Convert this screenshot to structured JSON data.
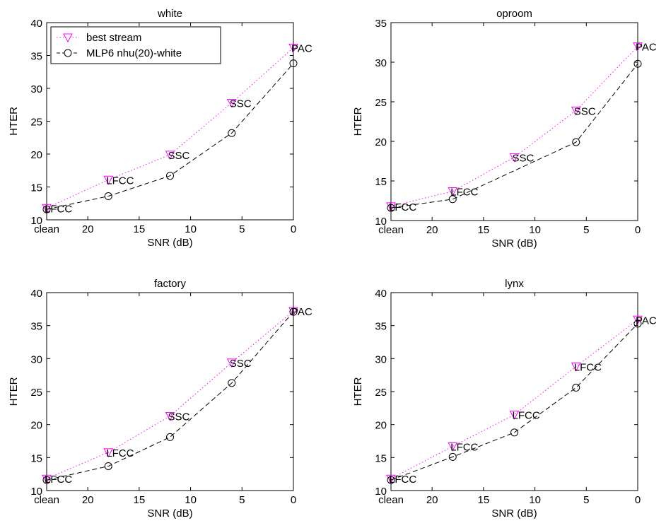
{
  "chart_data": [
    {
      "type": "line",
      "title": "white",
      "xlabel": "SNR (dB)",
      "ylabel": "HTER",
      "ylim": [
        10,
        40
      ],
      "yticks": [
        10,
        15,
        20,
        25,
        30,
        35,
        40
      ],
      "xticks": [
        {
          "value": 24,
          "label": "clean"
        },
        {
          "value": 20,
          "label": "20"
        },
        {
          "value": 15,
          "label": "15"
        },
        {
          "value": 10,
          "label": "10"
        },
        {
          "value": 5,
          "label": "5"
        },
        {
          "value": 0,
          "label": "0"
        }
      ],
      "x": [
        24,
        18,
        12,
        6,
        0
      ],
      "series": [
        {
          "name": "best stream",
          "color": "#ff00ff",
          "marker": "triangle-down",
          "values": [
            11.8,
            16.1,
            19.9,
            27.8,
            36.2
          ]
        },
        {
          "name": "MLP6 nhu(20)-white",
          "color": "#000000",
          "marker": "circle",
          "values": [
            11.6,
            13.6,
            16.7,
            23.2,
            33.8
          ]
        }
      ],
      "annotations": [
        "LFCC",
        "LFCC",
        "SSC",
        "SSC",
        "PAC"
      ],
      "legend": {
        "position": "top-left",
        "entries": [
          "best stream",
          "MLP6 nhu(20)-white"
        ]
      }
    },
    {
      "type": "line",
      "title": "oproom",
      "xlabel": "SNR (dB)",
      "ylabel": "HTER",
      "ylim": [
        10,
        35
      ],
      "yticks": [
        10,
        15,
        20,
        25,
        30,
        35
      ],
      "xticks": [
        {
          "value": 24,
          "label": "clean"
        },
        {
          "value": 20,
          "label": "20"
        },
        {
          "value": 15,
          "label": "15"
        },
        {
          "value": 10,
          "label": "10"
        },
        {
          "value": 5,
          "label": "5"
        },
        {
          "value": 0,
          "label": "0"
        }
      ],
      "x": [
        24,
        18,
        12,
        6,
        0
      ],
      "series": [
        {
          "name": "best stream",
          "color": "#ff00ff",
          "marker": "triangle-down",
          "values": [
            11.8,
            13.7,
            18.0,
            23.9,
            32.0
          ]
        },
        {
          "name": "MLP6 nhu(20)-white",
          "color": "#000000",
          "marker": "circle",
          "values": [
            11.6,
            12.7,
            null,
            19.9,
            29.8
          ]
        }
      ],
      "annotations": [
        "LFCC",
        "LFCC",
        "SSC",
        "SSC",
        "PAC"
      ]
    },
    {
      "type": "line",
      "title": "factory",
      "xlabel": "SNR (dB)",
      "ylabel": "HTER",
      "ylim": [
        10,
        40
      ],
      "yticks": [
        10,
        15,
        20,
        25,
        30,
        35,
        40
      ],
      "xticks": [
        {
          "value": 24,
          "label": "clean"
        },
        {
          "value": 20,
          "label": "20"
        },
        {
          "value": 15,
          "label": "15"
        },
        {
          "value": 10,
          "label": "10"
        },
        {
          "value": 5,
          "label": "5"
        },
        {
          "value": 0,
          "label": "0"
        }
      ],
      "x": [
        24,
        18,
        12,
        6,
        0
      ],
      "series": [
        {
          "name": "best stream",
          "color": "#ff00ff",
          "marker": "triangle-down",
          "values": [
            11.8,
            15.8,
            21.3,
            29.4,
            37.2
          ]
        },
        {
          "name": "MLP6 nhu(20)-white",
          "color": "#000000",
          "marker": "circle",
          "values": [
            11.6,
            13.7,
            18.1,
            26.3,
            37.1
          ]
        }
      ],
      "annotations": [
        "LFCC",
        "LFCC",
        "SSC",
        "SSC",
        "PAC"
      ]
    },
    {
      "type": "line",
      "title": "lynx",
      "xlabel": "SNR (dB)",
      "ylabel": "HTER",
      "ylim": [
        10,
        40
      ],
      "yticks": [
        10,
        15,
        20,
        25,
        30,
        35,
        40
      ],
      "xticks": [
        {
          "value": 24,
          "label": "clean"
        },
        {
          "value": 20,
          "label": "20"
        },
        {
          "value": 15,
          "label": "15"
        },
        {
          "value": 10,
          "label": "10"
        },
        {
          "value": 5,
          "label": "5"
        },
        {
          "value": 0,
          "label": "0"
        }
      ],
      "x": [
        24,
        18,
        12,
        6,
        0
      ],
      "series": [
        {
          "name": "best stream",
          "color": "#ff00ff",
          "marker": "triangle-down",
          "values": [
            11.8,
            16.7,
            21.5,
            28.8,
            35.9
          ]
        },
        {
          "name": "MLP6 nhu(20)-white",
          "color": "#000000",
          "marker": "circle",
          "values": [
            11.6,
            15.1,
            18.8,
            25.6,
            35.3
          ]
        }
      ],
      "annotations": [
        "LFCC",
        "LFCC",
        "LFCC",
        "LFCC",
        "PAC"
      ]
    }
  ]
}
